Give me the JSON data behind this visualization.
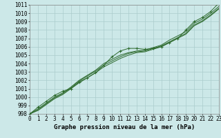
{
  "xlabel": "Graphe pression niveau de la mer (hPa)",
  "x_values": [
    0,
    1,
    2,
    3,
    4,
    5,
    6,
    7,
    8,
    9,
    10,
    11,
    12,
    13,
    14,
    15,
    16,
    17,
    18,
    19,
    20,
    21,
    22,
    23
  ],
  "series": [
    [
      998.0,
      998.8,
      999.5,
      1000.2,
      1000.7,
      1001.0,
      1001.8,
      1002.3,
      1002.9,
      1003.8,
      1004.8,
      1005.5,
      1005.8,
      1005.8,
      1005.7,
      1005.8,
      1006.0,
      1006.5,
      1007.0,
      1008.0,
      1009.0,
      1009.5,
      1010.2,
      1011.2
    ],
    [
      998.0,
      998.6,
      999.3,
      1000.0,
      1000.5,
      1001.2,
      1002.0,
      1002.6,
      1003.2,
      1004.0,
      1004.5,
      1005.0,
      1005.3,
      1005.5,
      1005.6,
      1005.9,
      1006.2,
      1006.8,
      1007.3,
      1007.8,
      1008.8,
      1009.3,
      1010.0,
      1010.8
    ],
    [
      998.0,
      998.5,
      999.2,
      999.9,
      1000.4,
      1001.1,
      1001.9,
      1002.5,
      1003.1,
      1003.8,
      1004.3,
      1004.8,
      1005.2,
      1005.4,
      1005.5,
      1005.8,
      1006.1,
      1006.6,
      1007.1,
      1007.6,
      1008.6,
      1009.1,
      1009.8,
      1010.6
    ],
    [
      998.0,
      998.4,
      999.1,
      999.8,
      1000.3,
      1001.0,
      1001.7,
      1002.3,
      1002.9,
      1003.6,
      1004.1,
      1004.6,
      1005.0,
      1005.3,
      1005.4,
      1005.7,
      1006.0,
      1006.5,
      1007.0,
      1007.5,
      1008.5,
      1009.0,
      1009.7,
      1010.5
    ]
  ],
  "line_color": "#2d6a2d",
  "marker": "+",
  "marker_size": 3,
  "bg_color": "#cce8e8",
  "grid_color": "#aacccc",
  "ylim": [
    998,
    1011
  ],
  "yticks": [
    998,
    999,
    1000,
    1001,
    1002,
    1003,
    1004,
    1005,
    1006,
    1007,
    1008,
    1009,
    1010,
    1011
  ],
  "xticks": [
    0,
    1,
    2,
    3,
    4,
    5,
    6,
    7,
    8,
    9,
    10,
    11,
    12,
    13,
    14,
    15,
    16,
    17,
    18,
    19,
    20,
    21,
    22,
    23
  ],
  "label_fontsize": 6.5,
  "tick_fontsize": 5.5
}
